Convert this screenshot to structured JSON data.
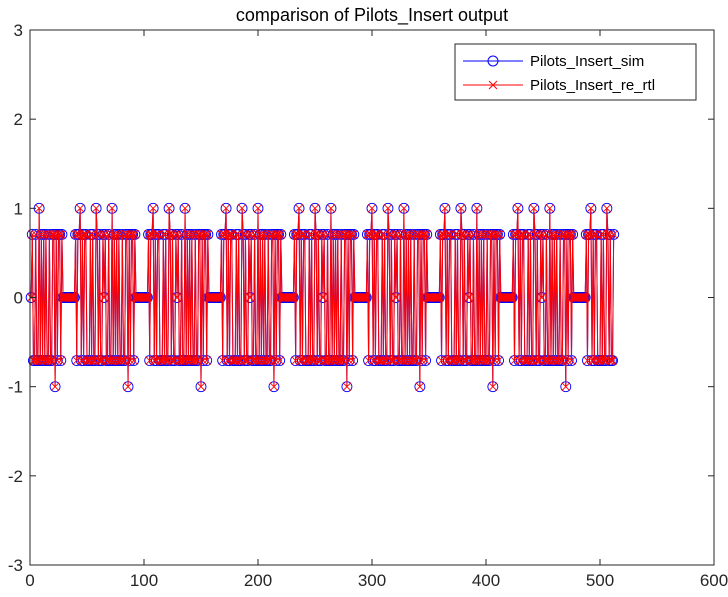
{
  "chart_data": {
    "type": "line",
    "title": "comparison of Pilots_Insert output",
    "xlabel": "",
    "ylabel": "",
    "xlim": [
      0,
      600
    ],
    "ylim": [
      -3,
      3
    ],
    "xticks": [
      0,
      100,
      200,
      300,
      400,
      500,
      600
    ],
    "yticks": [
      -3,
      -2,
      -1,
      0,
      1,
      2,
      3
    ],
    "x_tick_labels": [
      "0",
      "100",
      "200",
      "300",
      "400",
      "500",
      "600"
    ],
    "y_tick_labels": [
      "-3",
      "-2",
      "-1",
      "0",
      "1",
      "2",
      "3"
    ],
    "grid": false,
    "legend_position": "top-right",
    "n_points": 512,
    "x_start": 1,
    "x_step": 1,
    "series": [
      {
        "name": "Pilots_Insert_sim",
        "color": "#0000ff",
        "marker": "circle"
      },
      {
        "name": "Pilots_Insert_re_rtl",
        "color": "#ff0000",
        "marker": "x"
      }
    ],
    "level_values": [
      -1,
      -0.7071,
      0,
      0.7071,
      1
    ],
    "pattern_period": 64,
    "pattern_levels": [
      0,
      0.7071,
      -0.7071,
      -0.7071,
      0.7071,
      -0.7071,
      -0.7071,
      1,
      -0.7071,
      0.7071,
      -0.7071,
      0.7071,
      -0.7071,
      0.7071,
      -0.7071,
      -0.7071,
      0.7071,
      -0.7071,
      -0.7071,
      0.7071,
      0.7071,
      -1,
      0.7071,
      -0.7071,
      0.7071,
      0.7071,
      -0.7071,
      0.7071,
      0,
      0,
      0,
      0,
      0,
      0,
      0,
      0,
      0,
      0,
      0,
      0.7071,
      -0.7071,
      0.7071,
      0.7071,
      1,
      -0.7071,
      0.7071,
      -0.7071,
      0.7071,
      0.7071,
      -0.7071,
      -0.7071,
      -0.7071,
      0.7071,
      -0.7071,
      0.7071,
      -0.7071,
      -0.7071,
      1,
      0.7071,
      -0.7071,
      0.7071,
      -0.7071,
      -0.7071,
      0.7071
    ]
  }
}
